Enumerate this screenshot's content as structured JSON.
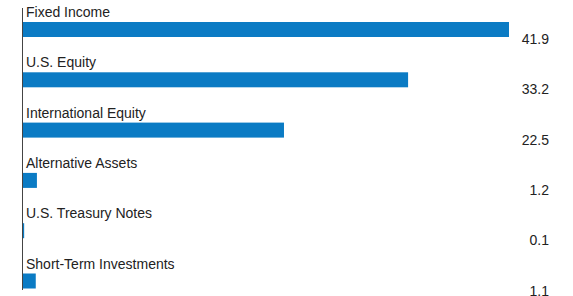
{
  "chart_data": {
    "type": "bar",
    "orientation": "horizontal",
    "categories": [
      "Fixed Income",
      "U.S. Equity",
      "International Equity",
      "Alternative Assets",
      "U.S. Treasury Notes",
      "Short-Term Investments"
    ],
    "values": [
      41.9,
      33.2,
      22.5,
      1.2,
      0.1,
      1.1
    ],
    "color": "#0b7bc4",
    "xlim": [
      0,
      41.9
    ],
    "data_labels": true,
    "tick_labels": false,
    "grid": false
  }
}
